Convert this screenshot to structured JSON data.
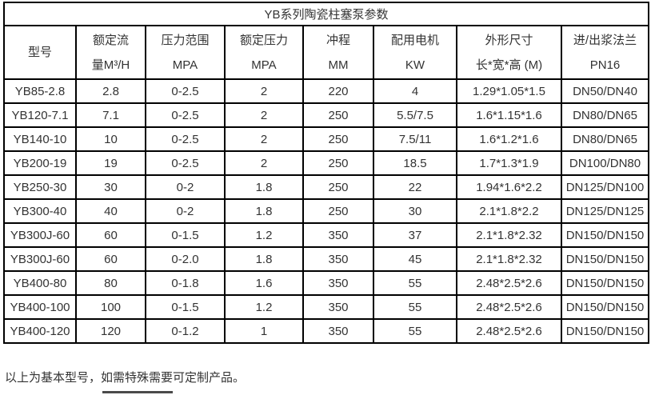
{
  "table": {
    "title": "YB系列陶瓷柱塞泵参数",
    "columns": [
      {
        "line1": "型号",
        "line2": ""
      },
      {
        "line1": "额定流",
        "line2": "量M³/H"
      },
      {
        "line1": "压力范围",
        "line2": "MPA"
      },
      {
        "line1": "额定压力",
        "line2": "MPA"
      },
      {
        "line1": "冲程",
        "line2": "MM"
      },
      {
        "line1": "配用电机",
        "line2": "KW"
      },
      {
        "line1": "外形尺寸",
        "line2": "长*宽*高 (M)"
      },
      {
        "line1": "进/出浆法兰",
        "line2": "PN16"
      }
    ],
    "rows": [
      [
        "YB85-2.8",
        "2.8",
        "0-2.5",
        "2",
        "220",
        "4",
        "1.29*1.05*1.5",
        "DN50/DN40"
      ],
      [
        "YB120-7.1",
        "7.1",
        "0-2.5",
        "2",
        "250",
        "5.5/7.5",
        "1.6*1.15*1.6",
        "DN80/DN65"
      ],
      [
        "YB140-10",
        "10",
        "0-2.5",
        "2",
        "250",
        "7.5/11",
        "1.6*1.2*1.6",
        "DN80/DN65"
      ],
      [
        "YB200-19",
        "19",
        "0-2.5",
        "2",
        "250",
        "18.5",
        "1.7*1.3*1.9",
        "DN100/DN80"
      ],
      [
        "YB250-30",
        "30",
        "0-2",
        "1.8",
        "250",
        "22",
        "1.94*1.6*2.2",
        "DN125/DN100"
      ],
      [
        "YB300-40",
        "40",
        "0-2",
        "1.8",
        "250",
        "30",
        "2.1*1.8*2.2",
        "DN125/DN125"
      ],
      [
        "YB300J-60",
        "60",
        "0-1.5",
        "1.2",
        "350",
        "37",
        "2.1*1.8*2.32",
        "DN150/DN150"
      ],
      [
        "YB300J-60",
        "60",
        "0-2.0",
        "1.8",
        "350",
        "45",
        "2.1*1.8*2.32",
        "DN150/DN150"
      ],
      [
        "YB400-80",
        "80",
        "0-1.8",
        "1.6",
        "350",
        "55",
        "2.48*2.5*2.6",
        "DN150/DN150"
      ],
      [
        "YB400-100",
        "100",
        "0-1.5",
        "1.2",
        "350",
        "55",
        "2.48*2.5*2.6",
        "DN150/DN150"
      ],
      [
        "YB400-120",
        "120",
        "0-1.2",
        "1",
        "350",
        "55",
        "2.48*2.5*2.6",
        "DN150/DN150"
      ]
    ]
  },
  "footer": {
    "note": "以上为基本型号，如需特殊需要可定制产品。"
  },
  "colors": {
    "border": "#000000",
    "text": "#333333",
    "background": "#ffffff",
    "fragment": "#4a4a4a"
  }
}
